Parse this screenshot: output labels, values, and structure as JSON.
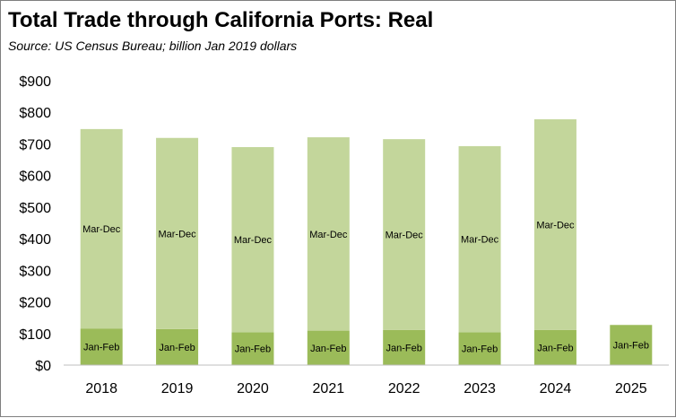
{
  "chart_data": {
    "type": "bar",
    "stacked": true,
    "title": "Total Trade through California Ports:  Real",
    "subtitle": "Source:  US Census Bureau; billion Jan 2019 dollars",
    "categories": [
      "2018",
      "2019",
      "2020",
      "2021",
      "2022",
      "2023",
      "2024",
      "2025"
    ],
    "series": [
      {
        "name": "Jan-Feb",
        "color": "#9bbb59",
        "values": [
          115,
          114,
          104,
          109,
          111,
          104,
          111,
          127
        ],
        "labels": [
          "Jan-Feb",
          "Jan-Feb",
          "Jan-Feb",
          "Jan-Feb",
          "Jan-Feb",
          "Jan-Feb",
          "Jan-Feb",
          "Jan-Feb"
        ]
      },
      {
        "name": "Mar-Dec",
        "color": "#c3d69b",
        "values": [
          632,
          605,
          586,
          612,
          604,
          589,
          667,
          null
        ],
        "labels": [
          "Mar-Dec",
          "Mar-Dec",
          "Mar-Dec",
          "Mar-Dec",
          "Mar-Dec",
          "Mar-Dec",
          "Mar-Dec",
          ""
        ]
      }
    ],
    "ylim": [
      0,
      900
    ],
    "yticks": [
      0,
      100,
      200,
      300,
      400,
      500,
      600,
      700,
      800,
      900
    ],
    "ytick_labels": [
      "$0",
      "$100",
      "$200",
      "$300",
      "$400",
      "$500",
      "$600",
      "$700",
      "$800",
      "$900"
    ],
    "xlabel": "",
    "ylabel": "",
    "grid": false,
    "legend": "none"
  }
}
